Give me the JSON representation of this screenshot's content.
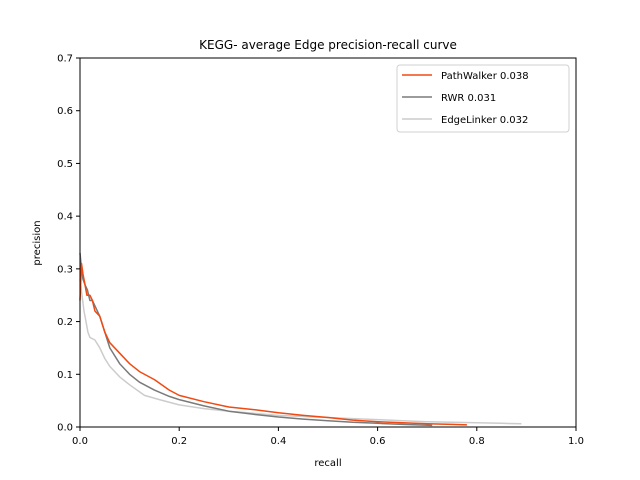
{
  "chart_data": {
    "type": "line",
    "title": "KEGG- average Edge precision-recall curve",
    "xlabel": "recall",
    "ylabel": "precision",
    "xlim": [
      0,
      1.0
    ],
    "ylim": [
      0,
      0.7
    ],
    "xticks": [
      "0.0",
      "0.2",
      "0.4",
      "0.6",
      "0.8",
      "1.0"
    ],
    "yticks": [
      "0.0",
      "0.1",
      "0.2",
      "0.3",
      "0.4",
      "0.5",
      "0.6",
      "0.7"
    ],
    "grid": false,
    "legend_position": "top-right",
    "series": [
      {
        "name": "PathWalker 0.038",
        "color": "#f04a12",
        "points": [
          [
            0.0,
            0.24
          ],
          [
            0.003,
            0.31
          ],
          [
            0.006,
            0.29
          ],
          [
            0.01,
            0.27
          ],
          [
            0.014,
            0.25
          ],
          [
            0.02,
            0.25
          ],
          [
            0.025,
            0.24
          ],
          [
            0.03,
            0.22
          ],
          [
            0.04,
            0.21
          ],
          [
            0.05,
            0.18
          ],
          [
            0.06,
            0.16
          ],
          [
            0.08,
            0.14
          ],
          [
            0.1,
            0.12
          ],
          [
            0.12,
            0.105
          ],
          [
            0.15,
            0.09
          ],
          [
            0.18,
            0.07
          ],
          [
            0.2,
            0.06
          ],
          [
            0.25,
            0.048
          ],
          [
            0.3,
            0.038
          ],
          [
            0.35,
            0.033
          ],
          [
            0.4,
            0.027
          ],
          [
            0.45,
            0.022
          ],
          [
            0.5,
            0.018
          ],
          [
            0.55,
            0.013
          ],
          [
            0.6,
            0.01
          ],
          [
            0.65,
            0.008
          ],
          [
            0.7,
            0.006
          ],
          [
            0.75,
            0.005
          ],
          [
            0.78,
            0.004
          ]
        ]
      },
      {
        "name": "RWR 0.031",
        "color": "#7a7a7a",
        "points": [
          [
            0.0,
            0.33
          ],
          [
            0.003,
            0.3
          ],
          [
            0.006,
            0.28
          ],
          [
            0.01,
            0.27
          ],
          [
            0.015,
            0.26
          ],
          [
            0.02,
            0.24
          ],
          [
            0.025,
            0.24
          ],
          [
            0.03,
            0.23
          ],
          [
            0.04,
            0.21
          ],
          [
            0.05,
            0.18
          ],
          [
            0.06,
            0.15
          ],
          [
            0.08,
            0.12
          ],
          [
            0.1,
            0.1
          ],
          [
            0.12,
            0.085
          ],
          [
            0.15,
            0.07
          ],
          [
            0.18,
            0.058
          ],
          [
            0.2,
            0.052
          ],
          [
            0.25,
            0.04
          ],
          [
            0.3,
            0.03
          ],
          [
            0.35,
            0.024
          ],
          [
            0.4,
            0.019
          ],
          [
            0.45,
            0.015
          ],
          [
            0.5,
            0.012
          ],
          [
            0.55,
            0.009
          ],
          [
            0.6,
            0.007
          ],
          [
            0.65,
            0.005
          ],
          [
            0.71,
            0.003
          ]
        ]
      },
      {
        "name": "EdgeLinker 0.032",
        "color": "#cccccc",
        "points": [
          [
            0.0,
            0.28
          ],
          [
            0.004,
            0.25
          ],
          [
            0.008,
            0.22
          ],
          [
            0.012,
            0.2
          ],
          [
            0.016,
            0.18
          ],
          [
            0.02,
            0.17
          ],
          [
            0.03,
            0.165
          ],
          [
            0.04,
            0.15
          ],
          [
            0.05,
            0.13
          ],
          [
            0.06,
            0.115
          ],
          [
            0.08,
            0.095
          ],
          [
            0.1,
            0.08
          ],
          [
            0.13,
            0.06
          ],
          [
            0.16,
            0.052
          ],
          [
            0.2,
            0.042
          ],
          [
            0.25,
            0.035
          ],
          [
            0.3,
            0.03
          ],
          [
            0.35,
            0.026
          ],
          [
            0.4,
            0.022
          ],
          [
            0.45,
            0.02
          ],
          [
            0.5,
            0.018
          ],
          [
            0.55,
            0.016
          ],
          [
            0.6,
            0.014
          ],
          [
            0.65,
            0.012
          ],
          [
            0.7,
            0.01
          ],
          [
            0.75,
            0.009
          ],
          [
            0.8,
            0.008
          ],
          [
            0.85,
            0.007
          ],
          [
            0.89,
            0.006
          ]
        ]
      }
    ]
  }
}
